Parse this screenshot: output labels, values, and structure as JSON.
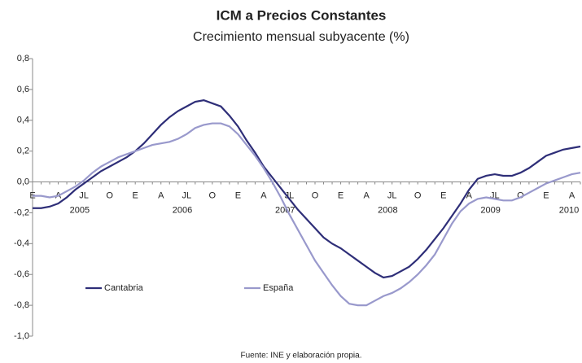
{
  "chart_data": {
    "type": "line",
    "title": "ICM a Precios Constantes",
    "subtitle": "Crecimiento mensual subyacente (%)",
    "source": "Fuente: INE y elaboración propia.",
    "categories": [
      "E",
      null,
      null,
      "A",
      null,
      null,
      "JL",
      null,
      null,
      "O",
      null,
      null,
      "E",
      null,
      null,
      "A",
      null,
      null,
      "JL",
      null,
      null,
      "O",
      null,
      null,
      "E",
      null,
      null,
      "A",
      null,
      null,
      "JL",
      null,
      null,
      "O",
      null,
      null,
      "E",
      null,
      null,
      "A",
      null,
      null,
      "JL",
      null,
      null,
      "O",
      null,
      null,
      "E",
      null,
      null,
      "A",
      null,
      null,
      "JL",
      null,
      null,
      "O",
      null,
      null,
      "E",
      null,
      null,
      "A",
      null
    ],
    "years": [
      "2005",
      "2006",
      "2007",
      "2008",
      "2009",
      "2010"
    ],
    "series": [
      {
        "name": "Cantabria",
        "color": "#2e2e78",
        "values": [
          -0.17,
          -0.17,
          -0.16,
          -0.14,
          -0.1,
          -0.05,
          -0.01,
          0.03,
          0.07,
          0.1,
          0.13,
          0.16,
          0.2,
          0.25,
          0.31,
          0.37,
          0.42,
          0.46,
          0.49,
          0.52,
          0.53,
          0.51,
          0.49,
          0.43,
          0.36,
          0.27,
          0.19,
          0.1,
          0.03,
          -0.04,
          -0.11,
          -0.18,
          -0.24,
          -0.3,
          -0.36,
          -0.4,
          -0.43,
          -0.47,
          -0.51,
          -0.55,
          -0.59,
          -0.62,
          -0.61,
          -0.58,
          -0.55,
          -0.5,
          -0.44,
          -0.37,
          -0.3,
          -0.22,
          -0.14,
          -0.05,
          0.02,
          0.04,
          0.05,
          0.04,
          0.04,
          0.06,
          0.09,
          0.13,
          0.17,
          0.19,
          0.21,
          0.22,
          0.23
        ]
      },
      {
        "name": "España",
        "color": "#9999cc",
        "values": [
          -0.09,
          -0.09,
          -0.1,
          -0.09,
          -0.06,
          -0.03,
          0.01,
          0.06,
          0.1,
          0.13,
          0.16,
          0.18,
          0.2,
          0.22,
          0.24,
          0.25,
          0.26,
          0.28,
          0.31,
          0.35,
          0.37,
          0.38,
          0.38,
          0.36,
          0.31,
          0.24,
          0.17,
          0.09,
          0.0,
          -0.1,
          -0.21,
          -0.31,
          -0.41,
          -0.51,
          -0.59,
          -0.67,
          -0.74,
          -0.79,
          -0.8,
          -0.8,
          -0.77,
          -0.74,
          -0.72,
          -0.69,
          -0.65,
          -0.6,
          -0.54,
          -0.47,
          -0.37,
          -0.27,
          -0.19,
          -0.14,
          -0.11,
          -0.1,
          -0.11,
          -0.12,
          -0.12,
          -0.1,
          -0.07,
          -0.04,
          -0.01,
          0.01,
          0.03,
          0.05,
          0.06
        ]
      }
    ],
    "ylim": [
      -1.0,
      0.8
    ],
    "yticks": [
      {
        "value": -1.0,
        "label": "-1,0"
      },
      {
        "value": -0.8,
        "label": "-0,8"
      },
      {
        "value": -0.6,
        "label": "-0,6"
      },
      {
        "value": -0.4,
        "label": "-0,4"
      },
      {
        "value": -0.2,
        "label": "-0,2"
      },
      {
        "value": 0.0,
        "label": "0,0"
      },
      {
        "value": 0.2,
        "label": "0,2"
      },
      {
        "value": 0.4,
        "label": "0,4"
      },
      {
        "value": 0.6,
        "label": "0,6"
      },
      {
        "value": 0.8,
        "label": "0,8"
      }
    ],
    "grid": false
  }
}
